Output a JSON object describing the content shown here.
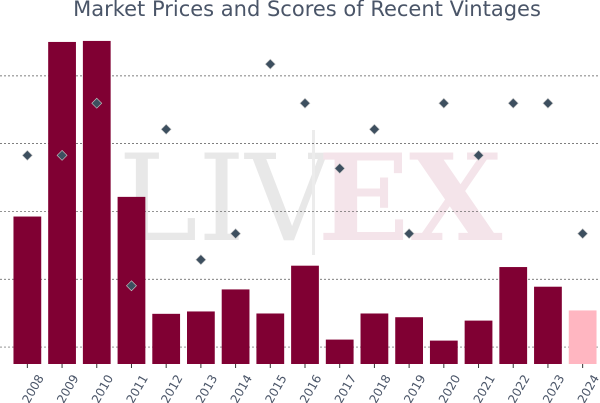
{
  "chart_data": {
    "type": "bar",
    "title": "Market Prices and Scores of Recent Vintages",
    "xlabel": "",
    "ylabel": "",
    "categories": [
      "2008",
      "2009",
      "2010",
      "2011",
      "2012",
      "2013",
      "2014",
      "2015",
      "2016",
      "2017",
      "2018",
      "2019",
      "2020",
      "2021",
      "2022",
      "2023",
      "2024"
    ],
    "series": [
      {
        "kind": "bar",
        "values": [
          385,
          900,
          903,
          443,
          98,
          105,
          170,
          99,
          240,
          22,
          99,
          88,
          19,
          78,
          236,
          178,
          108
        ],
        "colors": [
          "#800033",
          "#800033",
          "#800033",
          "#800033",
          "#800033",
          "#800033",
          "#800033",
          "#800033",
          "#800033",
          "#800033",
          "#800033",
          "#800033",
          "#800033",
          "#800033",
          "#800033",
          "#800033",
          "#ffb6c1"
        ]
      },
      {
        "kind": "scatter",
        "marker": "diamond",
        "values": [
          96,
          96,
          98,
          91,
          97,
          92,
          93,
          99.5,
          98,
          95.5,
          97,
          93,
          98,
          96,
          98,
          98,
          93
        ],
        "color": "#3d4f5f"
      }
    ],
    "ylim": [
      -50,
      950
    ],
    "y_ticks": [
      0,
      200,
      400,
      600,
      800
    ],
    "grid": "horizontal-dashed",
    "watermark": {
      "left": "LIV",
      "right": "EX"
    }
  }
}
